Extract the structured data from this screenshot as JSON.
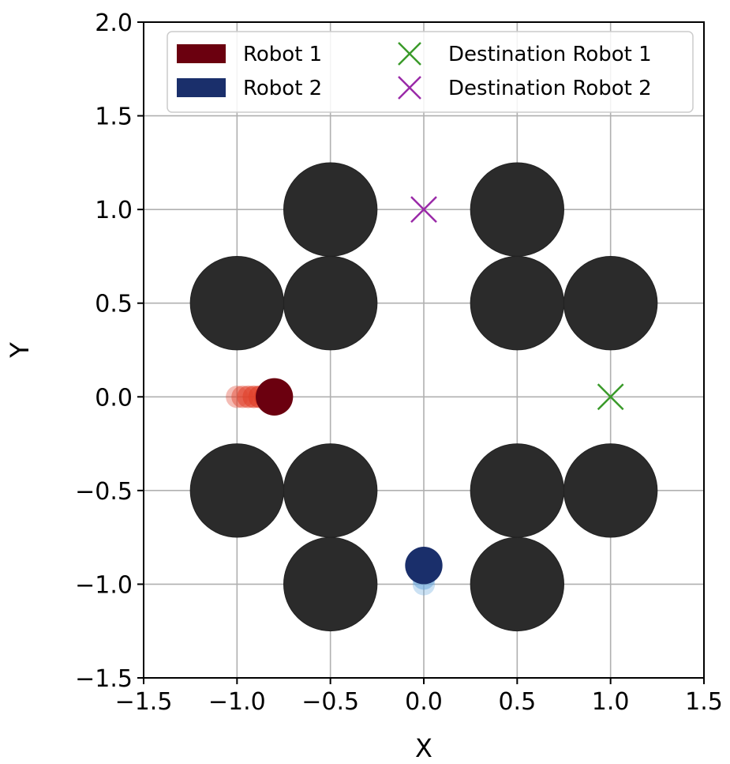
{
  "chart_data": {
    "type": "scatter",
    "xlabel": "X",
    "ylabel": "Y",
    "xlim": [
      -1.5,
      1.5
    ],
    "ylim": [
      -1.5,
      2.0
    ],
    "xticks": [
      -1.5,
      -1.0,
      -0.5,
      0.0,
      0.5,
      1.0,
      1.5
    ],
    "yticks": [
      -1.5,
      -1.0,
      -0.5,
      0.0,
      0.5,
      1.0,
      1.5,
      2.0
    ],
    "xtick_labels": [
      "−1.5",
      "−1.0",
      "−0.5",
      "0.0",
      "0.5",
      "1.0",
      "1.5"
    ],
    "ytick_labels": [
      "−1.5",
      "−1.0",
      "−0.5",
      "0.0",
      "0.5",
      "1.0",
      "1.5",
      "2.0"
    ],
    "grid": true,
    "legend_position": "top-right",
    "obstacles": {
      "radius": 0.25,
      "color": "#2b2b2b",
      "centers": [
        [
          -0.5,
          1.0
        ],
        [
          0.5,
          1.0
        ],
        [
          -1.0,
          0.5
        ],
        [
          -0.5,
          0.5
        ],
        [
          0.5,
          0.5
        ],
        [
          1.0,
          0.5
        ],
        [
          -1.0,
          -0.5
        ],
        [
          -0.5,
          -0.5
        ],
        [
          0.5,
          -0.5
        ],
        [
          1.0,
          -0.5
        ],
        [
          -0.5,
          -1.0
        ],
        [
          0.5,
          -1.0
        ]
      ]
    },
    "series": [
      {
        "name": "Robot 1",
        "kind": "robot",
        "color": "#6b000f",
        "trail_color": "#e0402a",
        "radius": 0.1,
        "trail_x": [
          -1.0,
          -0.97,
          -0.94,
          -0.91,
          -0.88,
          -0.85,
          -0.82
        ],
        "trail_y": [
          0.0,
          0.0,
          0.0,
          0.0,
          0.0,
          0.0,
          0.0
        ],
        "x": -0.8,
        "y": 0.0
      },
      {
        "name": "Robot 2",
        "kind": "robot",
        "color": "#1a2f6b",
        "trail_color": "#6aa8dc",
        "radius": 0.1,
        "trail_x": [
          0.0,
          0.0,
          0.0,
          0.0
        ],
        "trail_y": [
          -1.0,
          -0.97,
          -0.94,
          -0.92
        ],
        "x": 0.0,
        "y": -0.9
      },
      {
        "name": "Destination Robot 1",
        "kind": "destination",
        "color": "#3a9a2a",
        "x": 1.0,
        "y": 0.0
      },
      {
        "name": "Destination Robot 2",
        "kind": "destination",
        "color": "#9a2aa8",
        "x": 0.0,
        "y": 1.0
      }
    ]
  }
}
